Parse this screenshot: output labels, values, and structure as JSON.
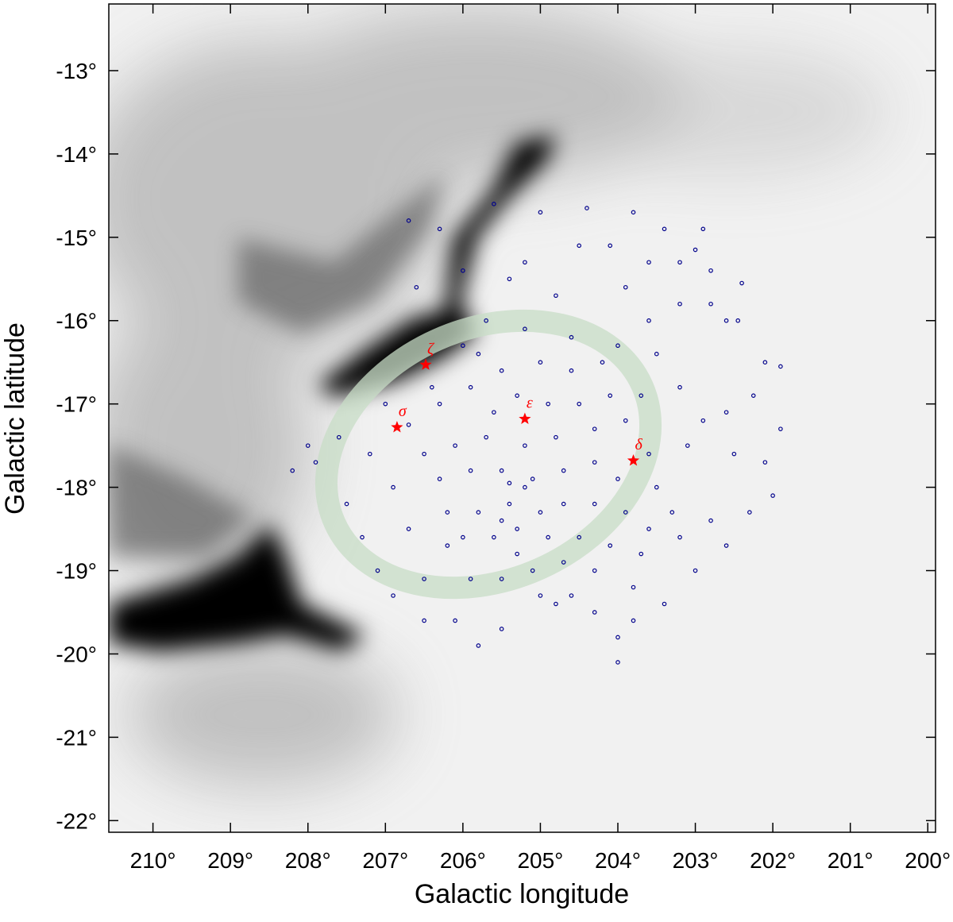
{
  "chart_data": {
    "type": "scatter",
    "xlabel": "Galactic longitude",
    "ylabel": "Galactic latitude",
    "xlim": [
      210.57,
      199.9
    ],
    "ylim": [
      -22.14,
      -12.2
    ],
    "xticks": [
      {
        "value": 210,
        "label": "210°"
      },
      {
        "value": 209,
        "label": "209°"
      },
      {
        "value": 208,
        "label": "208°"
      },
      {
        "value": 207,
        "label": "207°"
      },
      {
        "value": 206,
        "label": "206°"
      },
      {
        "value": 205,
        "label": "205°"
      },
      {
        "value": 204,
        "label": "204°"
      },
      {
        "value": 203,
        "label": "203°"
      },
      {
        "value": 202,
        "label": "202°"
      },
      {
        "value": 201,
        "label": "201°"
      },
      {
        "value": 200,
        "label": "200°"
      }
    ],
    "yticks": [
      {
        "value": -13,
        "label": "-13°"
      },
      {
        "value": -14,
        "label": "-14°"
      },
      {
        "value": -15,
        "label": "-15°"
      },
      {
        "value": -16,
        "label": "-16°"
      },
      {
        "value": -17,
        "label": "-17°"
      },
      {
        "value": -18,
        "label": "-18°"
      },
      {
        "value": -19,
        "label": "-19°"
      },
      {
        "value": -20,
        "label": "-20°"
      },
      {
        "value": -21,
        "label": "-21°"
      },
      {
        "value": -22,
        "label": "-22°"
      }
    ],
    "series": [
      {
        "color": "#00008b",
        "marker": "circle",
        "x": [
          206.7,
          206.3,
          205.6,
          205.0,
          204.4,
          203.8,
          203.4,
          202.9,
          203.2,
          203.6,
          204.1,
          204.5,
          205.2,
          206.0,
          206.6,
          205.4,
          204.8,
          203.9,
          203.0,
          202.8,
          202.4,
          202.6,
          202.8,
          203.2,
          203.6,
          202.45,
          202.1,
          201.9,
          202.25,
          202.6,
          201.9,
          202.1,
          202.5,
          202.9,
          203.1,
          202.0,
          202.3,
          202.8,
          202.6,
          203.2,
          203.6,
          203.0,
          203.4,
          203.8,
          204.0,
          204.0,
          203.8,
          204.3,
          204.8,
          205.5,
          205.8,
          206.1,
          206.5,
          207.1,
          207.3,
          207.5,
          207.9,
          208.2,
          207.6,
          207.2,
          206.9,
          206.7,
          206.2,
          206.9,
          206.5,
          208.0,
          206.0,
          205.7,
          205.2,
          204.6,
          204.0,
          203.5,
          203.2,
          207.0,
          206.7,
          205.0,
          204.6,
          205.5,
          205.9,
          206.3,
          205.6,
          205.3,
          204.9,
          204.5,
          204.1,
          203.9,
          204.3,
          204.8,
          205.2,
          205.7,
          206.1,
          206.5,
          206.3,
          205.9,
          205.5,
          205.1,
          204.7,
          204.3,
          204.0,
          203.9,
          204.3,
          204.7,
          205.0,
          205.4,
          205.8,
          206.2,
          206.0,
          205.6,
          205.3,
          204.9,
          204.5,
          204.1,
          204.3,
          204.7,
          205.1,
          205.5,
          205.9,
          205.2,
          205.4,
          205.5,
          205.3,
          204.6,
          205.0,
          206.4,
          205.8,
          204.2,
          203.7,
          203.6,
          203.5,
          203.3,
          203.7
        ],
        "values": [
          -14.8,
          -14.9,
          -14.6,
          -14.7,
          -14.65,
          -14.7,
          -14.9,
          -14.9,
          -15.3,
          -15.3,
          -15.1,
          -15.1,
          -15.3,
          -15.4,
          -15.6,
          -15.5,
          -15.7,
          -15.6,
          -15.15,
          -15.4,
          -15.55,
          -16.0,
          -15.8,
          -15.8,
          -16.0,
          -16.0,
          -16.5,
          -16.55,
          -16.9,
          -17.1,
          -17.3,
          -17.7,
          -17.6,
          -17.2,
          -17.5,
          -18.1,
          -18.3,
          -18.4,
          -18.7,
          -18.6,
          -18.5,
          -19.0,
          -19.4,
          -19.2,
          -19.8,
          -20.1,
          -19.6,
          -19.5,
          -19.4,
          -19.7,
          -19.9,
          -19.6,
          -19.1,
          -19.0,
          -18.6,
          -18.2,
          -17.7,
          -17.8,
          -17.4,
          -17.6,
          -18.0,
          -18.5,
          -18.7,
          -19.3,
          -19.6,
          -17.5,
          -16.3,
          -16.0,
          -16.1,
          -16.2,
          -16.3,
          -16.4,
          -16.8,
          -17.0,
          -17.25,
          -16.5,
          -16.6,
          -16.6,
          -16.8,
          -17.0,
          -17.1,
          -16.9,
          -17.0,
          -17.0,
          -16.9,
          -17.2,
          -17.3,
          -17.4,
          -17.5,
          -17.4,
          -17.5,
          -17.6,
          -17.9,
          -17.8,
          -17.8,
          -17.9,
          -17.8,
          -17.7,
          -17.9,
          -18.3,
          -18.2,
          -18.2,
          -18.3,
          -18.2,
          -18.3,
          -18.3,
          -18.6,
          -18.6,
          -18.5,
          -18.6,
          -18.6,
          -18.7,
          -19.0,
          -18.9,
          -19.0,
          -19.1,
          -19.1,
          -18.0,
          -17.95,
          -18.4,
          -18.8,
          -19.3,
          -19.3,
          -16.8,
          -16.4,
          -16.5,
          -16.9,
          -17.6,
          -18.0,
          -18.3,
          -18.8
        ]
      },
      {
        "color": "#ff0000",
        "marker": "star",
        "x": [
          206.85,
          206.48,
          205.2,
          203.8
        ],
        "values": [
          -17.28,
          -16.53,
          -17.18,
          -17.68
        ],
        "labels": [
          "σ",
          "ζ",
          "ε",
          "δ"
        ]
      }
    ]
  }
}
